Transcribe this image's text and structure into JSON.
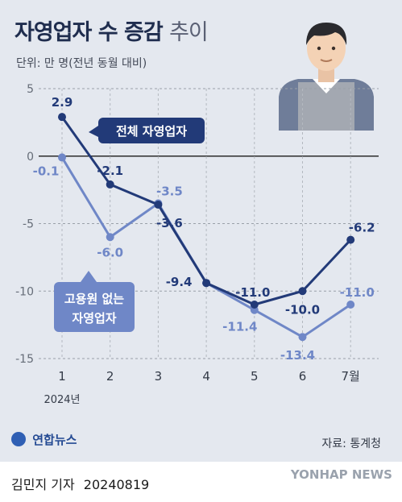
{
  "title": {
    "main": "자영업자 수 증감",
    "sub": "추이"
  },
  "unit_label": "단위: 만 명(전년 동월 대비)",
  "source": "자료: 통계청",
  "logo_text": "연합뉴스",
  "byline": {
    "reporter": "김민지 기자",
    "date": "20240819"
  },
  "agency_mark": "YONHAP NEWS",
  "colors": {
    "total": "#223a78",
    "no_employee": "#6f87c7",
    "background": "#e4e8ef"
  },
  "chart_data": {
    "type": "line",
    "title": "자영업자 수 증감 추이",
    "x": [
      "1",
      "2",
      "3",
      "4",
      "5",
      "6",
      "7월"
    ],
    "x_year_label": "2024년",
    "ylim": [
      -15,
      5
    ],
    "yticks": [
      5,
      0,
      -5,
      -10,
      -15
    ],
    "grid": true,
    "series": [
      {
        "name": "전체 자영업자",
        "values": [
          2.9,
          -2.1,
          -3.6,
          -9.4,
          -11.0,
          -10.0,
          -6.2
        ],
        "labels": [
          "2.9",
          "-2.1",
          "-3.6",
          "-9.4",
          "-11.0",
          "-10.0",
          "-6.2"
        ]
      },
      {
        "name": "고용원 없는 자영업자",
        "name_lines": [
          "고용원 없는",
          "자영업자"
        ],
        "values": [
          -0.1,
          -6.0,
          -3.5,
          -9.4,
          -11.4,
          -13.4,
          -11.0
        ],
        "labels": [
          "-0.1",
          "-6.0",
          "-3.5",
          "",
          "-11.4",
          "-13.4",
          "-11.0"
        ]
      }
    ]
  }
}
